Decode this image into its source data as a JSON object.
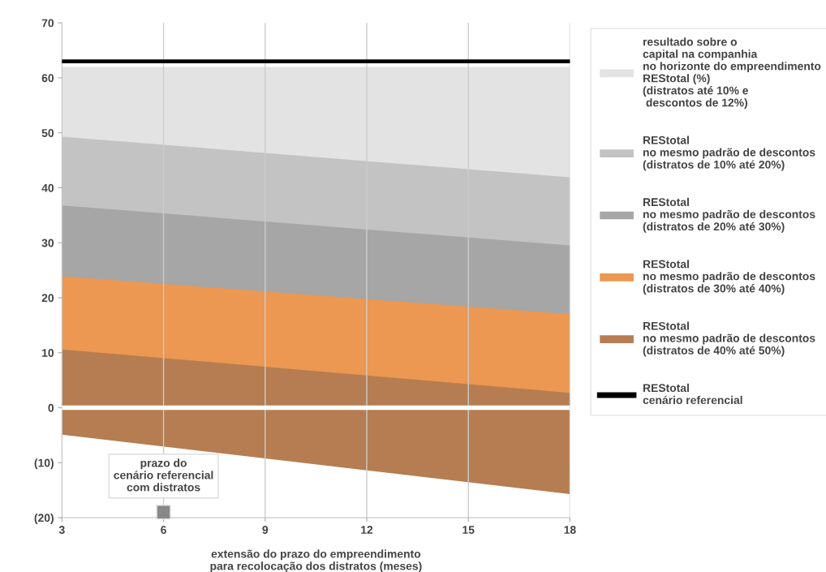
{
  "chart_data": {
    "type": "area",
    "xlabel": "extensão do prazo do empreendimento\npara recolocação dos distratos (meses)",
    "x": [
      3,
      18
    ],
    "series": [
      {
        "name": "resultado sobre o\ncapital na companhia\nno horizonte do empreendimento\nREStotal (%)\n(distratos até 10% e\n descontos de 12%)",
        "color": "#e3e3e3",
        "values": [
          62,
          62
        ]
      },
      {
        "name": "REStotal\nno mesmo padrão de descontos\n(distratos de 10% até 20%)",
        "color": "#c3c3c3",
        "values": [
          49.3,
          41.9
        ]
      },
      {
        "name": "REStotal\nno mesmo padrão de descontos\n(distratos de 20% até 30%)",
        "color": "#a6a6a6",
        "values": [
          36.8,
          29.5
        ]
      },
      {
        "name": "REStotal\nno mesmo padrão de descontos\n(distratos de 30% até 40%)",
        "color": "#ec9752",
        "values": [
          23.9,
          17.0
        ]
      },
      {
        "name": "REStotal\nno mesmo padrão de descontos\n(distratos de 40% até 50%)",
        "color": "#b57d51",
        "values": [
          10.6,
          2.7
        ]
      },
      {
        "color": "#b57d51",
        "values": [
          -4.9,
          -15.7
        ]
      }
    ],
    "xlim": [
      3,
      18
    ],
    "xticks": [
      3,
      6,
      9,
      12,
      15,
      18
    ],
    "ylim": [
      -20,
      70
    ],
    "yticks": [
      {
        "value": -20,
        "label": "(20)"
      },
      {
        "value": -10,
        "label": "(10)"
      },
      0,
      10,
      20,
      30,
      40,
      50,
      60,
      70
    ],
    "ref_lines": [
      {
        "axis": "y",
        "value": 0,
        "label": null,
        "color": "#ffffff"
      },
      {
        "axis": "y",
        "value": 63,
        "label": "REStotal\ncenário referencial",
        "color": "#000000"
      }
    ],
    "annotations": [
      {
        "text": "prazo do\ncenário referencial\ncom distratos",
        "x": 6,
        "y": -19
      }
    ],
    "grid": "x",
    "legend": "right"
  }
}
